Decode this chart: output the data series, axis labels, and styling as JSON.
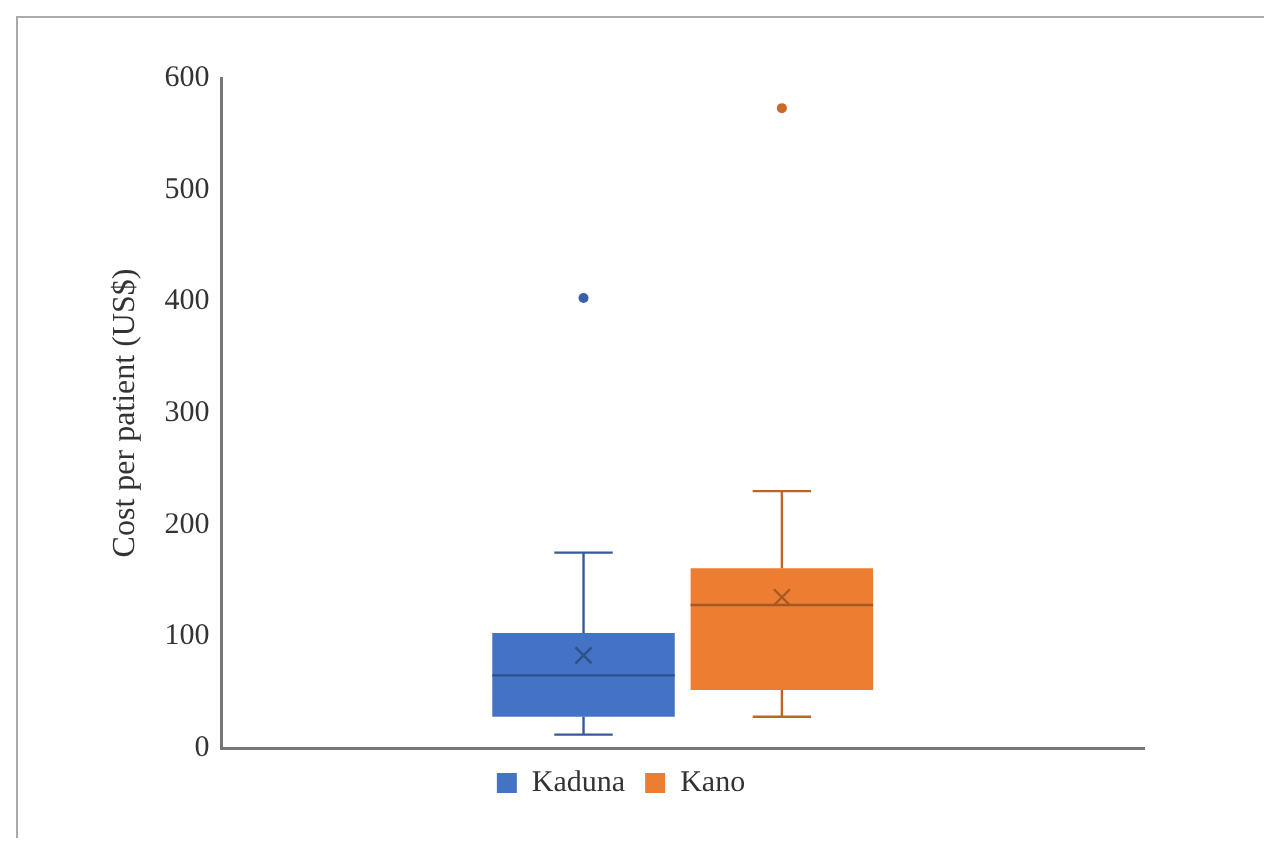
{
  "chart_data": {
    "type": "box",
    "ylabel": "Cost per patient (US$)",
    "categories": [
      null
    ],
    "ylim": [
      0,
      600
    ],
    "yticks": [
      0,
      100,
      200,
      300,
      400,
      500,
      600
    ],
    "grid": false,
    "legend": "bottom",
    "tick_labels": "y",
    "series": [
      {
        "name": "Kaduna",
        "color": "#4472c4",
        "boxes": [
          {
            "low": 12,
            "q1": 28,
            "median": 65,
            "q3": 103,
            "high": 175,
            "mean": 83,
            "outliers": [
              403
            ]
          }
        ]
      },
      {
        "name": "Kano",
        "color": "#ed7d31",
        "boxes": [
          {
            "low": 28,
            "q1": 52,
            "median": 128,
            "q3": 161,
            "high": 230,
            "mean": 135,
            "outliers": [
              573
            ]
          }
        ]
      }
    ]
  }
}
